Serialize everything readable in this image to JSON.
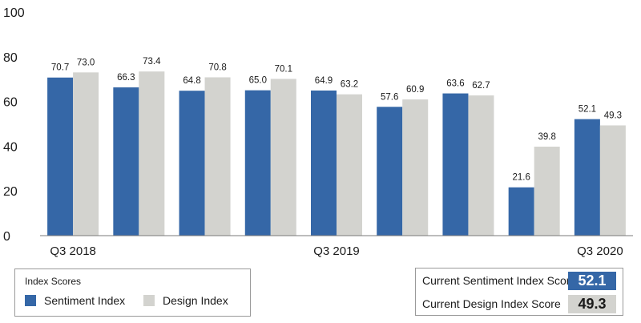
{
  "chart_data": {
    "type": "bar",
    "categories": [
      "Q3 2018",
      "",
      "",
      "",
      "Q3 2019",
      "",
      "",
      "",
      "Q3 2020"
    ],
    "series": [
      {
        "name": "Sentiment Index",
        "values": [
          70.7,
          66.3,
          64.8,
          65.0,
          64.9,
          57.6,
          63.6,
          21.6,
          52.1
        ],
        "labels": [
          "70.7",
          "66.3",
          "64.8",
          "65.0",
          "64.9",
          "57.6",
          "63.6",
          "21.6",
          "52.1"
        ],
        "color": "#3567a7"
      },
      {
        "name": "Design Index",
        "values": [
          73.0,
          73.4,
          70.8,
          70.1,
          63.2,
          60.9,
          62.7,
          39.8,
          49.3
        ],
        "labels": [
          "73.0",
          "73.4",
          "70.8",
          "70.1",
          "63.2",
          "60.9",
          "62.7",
          "39.8",
          "49.3"
        ],
        "color": "#d3d3cf"
      }
    ],
    "yticks": [
      "0",
      "20",
      "40",
      "60",
      "80",
      "100"
    ],
    "ylim": [
      0,
      100
    ],
    "grid": false,
    "xlabel": "",
    "ylabel": "",
    "title": ""
  },
  "legend": {
    "title": "Index Scores",
    "items": [
      {
        "label": "Sentiment Index",
        "color": "#3567a7"
      },
      {
        "label": "Design Index",
        "color": "#d3d3cf"
      }
    ]
  },
  "scores": [
    {
      "label": "Current Sentiment Index Score",
      "value": "52.1",
      "bg": "#3567a7",
      "fg": "#ffffff"
    },
    {
      "label": "Current Design Index Score",
      "value": "49.3",
      "bg": "#d3d3cf",
      "fg": "#1a1a1a"
    }
  ]
}
